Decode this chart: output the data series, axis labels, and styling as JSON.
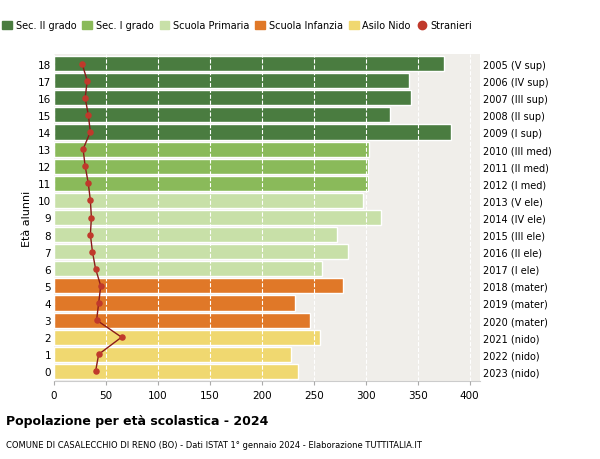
{
  "ages": [
    18,
    17,
    16,
    15,
    14,
    13,
    12,
    11,
    10,
    9,
    8,
    7,
    6,
    5,
    4,
    3,
    2,
    1,
    0
  ],
  "years": [
    "2005 (V sup)",
    "2006 (IV sup)",
    "2007 (III sup)",
    "2008 (II sup)",
    "2009 (I sup)",
    "2010 (III med)",
    "2011 (II med)",
    "2012 (I med)",
    "2013 (V ele)",
    "2014 (IV ele)",
    "2015 (III ele)",
    "2016 (II ele)",
    "2017 (I ele)",
    "2018 (mater)",
    "2019 (mater)",
    "2020 (mater)",
    "2021 (nido)",
    "2022 (nido)",
    "2023 (nido)"
  ],
  "bar_values": [
    375,
    342,
    344,
    323,
    382,
    303,
    302,
    302,
    297,
    315,
    272,
    283,
    258,
    278,
    232,
    246,
    256,
    228,
    235
  ],
  "stranieri": [
    27,
    32,
    30,
    33,
    35,
    28,
    30,
    33,
    35,
    36,
    35,
    37,
    40,
    45,
    43,
    41,
    65,
    43,
    40
  ],
  "bar_colors": [
    "#4a7c40",
    "#4a7c40",
    "#4a7c40",
    "#4a7c40",
    "#4a7c40",
    "#8aba5a",
    "#8aba5a",
    "#8aba5a",
    "#c8e0a8",
    "#c8e0a8",
    "#c8e0a8",
    "#c8e0a8",
    "#c8e0a8",
    "#e07828",
    "#e07828",
    "#e07828",
    "#f0d870",
    "#f0d870",
    "#f0d870"
  ],
  "legend_labels": [
    "Sec. II grado",
    "Sec. I grado",
    "Scuola Primaria",
    "Scuola Infanzia",
    "Asilo Nido",
    "Stranieri"
  ],
  "legend_colors": [
    "#4a7c40",
    "#8aba5a",
    "#c8e0a8",
    "#e07828",
    "#f0d870",
    "#c0392b"
  ],
  "stranieri_color": "#c0392b",
  "stranieri_line_color": "#8b1a1a",
  "ylabel_left": "Età alunni",
  "title_bold": "Popolazione per età scolastica - 2024",
  "subtitle": "COMUNE DI CASALECCHIO DI RENO (BO) - Dati ISTAT 1° gennaio 2024 - Elaborazione TUTTITALIA.IT",
  "xlim": [
    0,
    410
  ],
  "xticks": [
    0,
    50,
    100,
    150,
    200,
    250,
    300,
    350,
    400
  ],
  "background_color": "#f0eeea"
}
